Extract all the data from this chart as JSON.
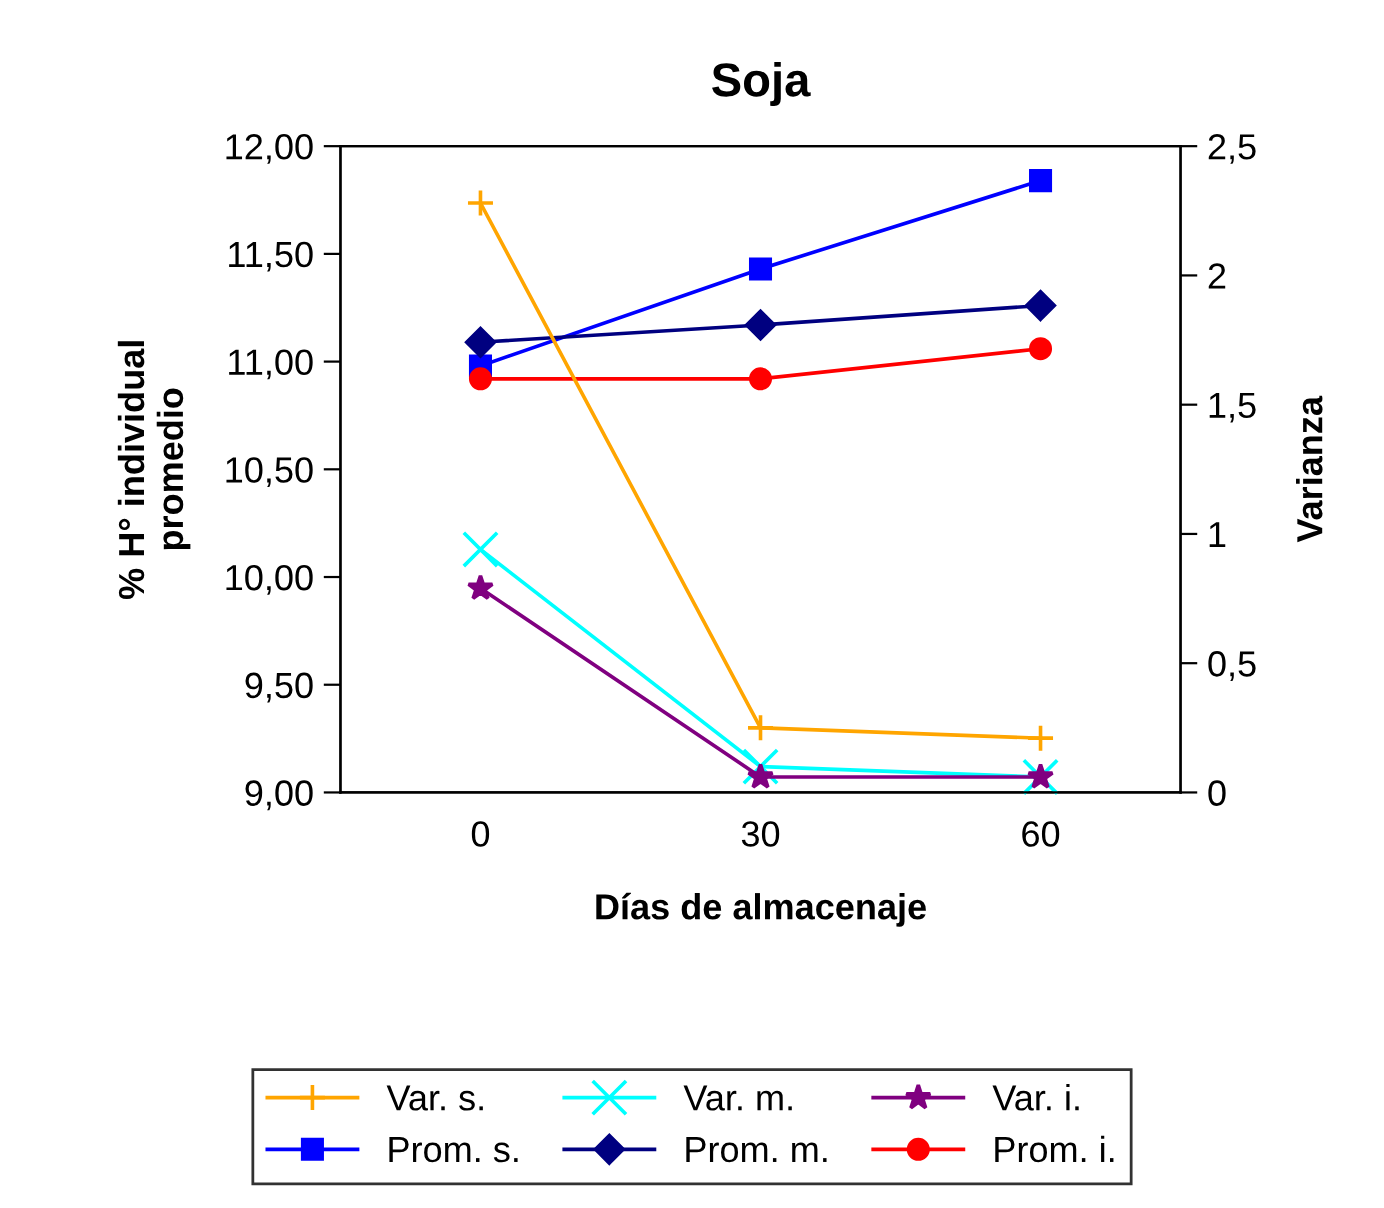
{
  "chart_data": {
    "type": "line",
    "title": "Soja",
    "xlabel": "Días de almacenaje",
    "ylabel": "% H° individual\npromedio",
    "y2label": "Varianza",
    "categories": [
      "0",
      "30",
      "60"
    ],
    "series": [
      {
        "name": "Var. s.",
        "color": "#ffa500",
        "axis": "y2",
        "marker": "cross",
        "values": [
          2.28,
          0.25,
          0.21
        ]
      },
      {
        "name": "Var. m.",
        "color": "#00ffff",
        "axis": "y2",
        "marker": "x",
        "values": [
          0.94,
          0.1,
          0.06
        ]
      },
      {
        "name": "Var. i.",
        "color": "#800080",
        "axis": "y2",
        "marker": "star",
        "values": [
          0.79,
          0.06,
          0.06
        ]
      },
      {
        "name": "Prom. s.",
        "color": "#0000ff",
        "marker": "square",
        "values": [
          10.98,
          11.43,
          11.84
        ]
      },
      {
        "name": "Prom. m.",
        "color": "#000080",
        "marker": "diamond",
        "values": [
          11.09,
          11.17,
          11.26
        ]
      },
      {
        "name": "Prom. i.",
        "color": "#ff0000",
        "marker": "circle",
        "values": [
          10.92,
          10.92,
          11.06
        ]
      }
    ],
    "ylim": [
      9,
      12
    ],
    "yticks": [
      {
        "value": 9,
        "label": "9,00"
      },
      {
        "value": 9.5,
        "label": "9,50"
      },
      {
        "value": 10,
        "label": "10,00"
      },
      {
        "value": 10.5,
        "label": "10,50"
      },
      {
        "value": 11,
        "label": "11,00"
      },
      {
        "value": 11.5,
        "label": "11,50"
      },
      {
        "value": 12,
        "label": "12,00"
      }
    ],
    "y2lim": [
      0,
      2.5
    ],
    "y2ticks": [
      0,
      {
        "value": 0.5,
        "label": "0,5"
      },
      1,
      {
        "value": 1.5,
        "label": "1,5"
      },
      2,
      {
        "value": 2.5,
        "label": "2,5"
      }
    ],
    "grid": false,
    "legend": "bottom",
    "line_style": "solid"
  }
}
